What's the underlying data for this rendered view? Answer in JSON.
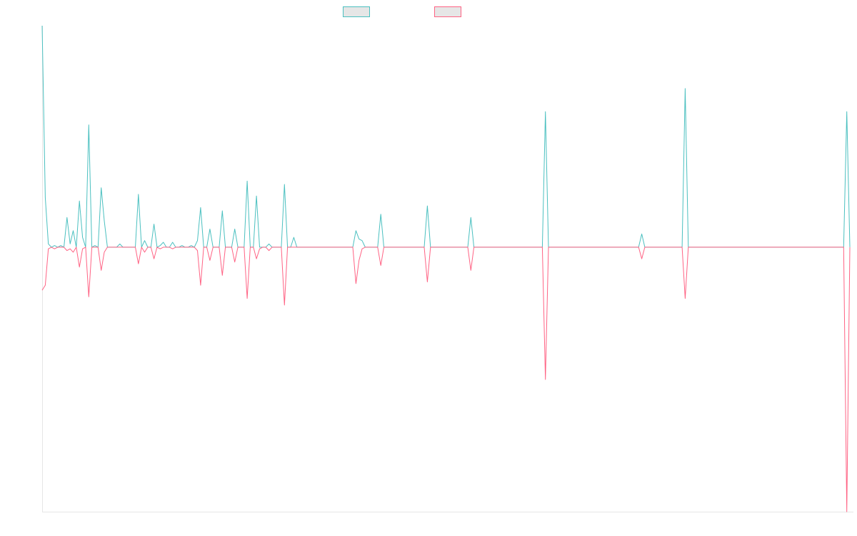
{
  "chart_data": {
    "type": "line",
    "title": "",
    "xlabel": "",
    "ylabel": "",
    "x_count": 145,
    "ylim": [
      -80,
      67
    ],
    "grid": false,
    "legend_position": "top",
    "series": [
      {
        "name": "",
        "color": "#4bc0c0",
        "points": [
          [
            0,
            67
          ],
          [
            1,
            15
          ],
          [
            2,
            1
          ],
          [
            3,
            0
          ],
          [
            4,
            0.5
          ],
          [
            5,
            0
          ],
          [
            6,
            0.5
          ],
          [
            7,
            0
          ],
          [
            8,
            9
          ],
          [
            9,
            1
          ],
          [
            10,
            5
          ],
          [
            11,
            0
          ],
          [
            12,
            14
          ],
          [
            13,
            3
          ],
          [
            14,
            0
          ],
          [
            15,
            37
          ],
          [
            16,
            0
          ],
          [
            17,
            0.5
          ],
          [
            18,
            0
          ],
          [
            19,
            18
          ],
          [
            20,
            8
          ],
          [
            21,
            0
          ],
          [
            22,
            0
          ],
          [
            23,
            0
          ],
          [
            24,
            0
          ],
          [
            25,
            1
          ],
          [
            26,
            0
          ],
          [
            27,
            0
          ],
          [
            28,
            0
          ],
          [
            29,
            0
          ],
          [
            30,
            0
          ],
          [
            31,
            16
          ],
          [
            32,
            0
          ],
          [
            33,
            2
          ],
          [
            34,
            0
          ],
          [
            35,
            0
          ],
          [
            36,
            7
          ],
          [
            37,
            0
          ],
          [
            38,
            0.5
          ],
          [
            39,
            1.5
          ],
          [
            40,
            0
          ],
          [
            41,
            0
          ],
          [
            42,
            1.5
          ],
          [
            43,
            0
          ],
          [
            44,
            0
          ],
          [
            45,
            0.5
          ],
          [
            46,
            0
          ],
          [
            47,
            0
          ],
          [
            48,
            0.5
          ],
          [
            49,
            0
          ],
          [
            50,
            2
          ],
          [
            51,
            12
          ],
          [
            52,
            0
          ],
          [
            53,
            0
          ],
          [
            54,
            5.5
          ],
          [
            55,
            0
          ],
          [
            56,
            0
          ],
          [
            57,
            0
          ],
          [
            58,
            11
          ],
          [
            59,
            0
          ],
          [
            60,
            0
          ],
          [
            61,
            0
          ],
          [
            62,
            5.5
          ],
          [
            63,
            0
          ],
          [
            64,
            0
          ],
          [
            65,
            0
          ],
          [
            66,
            20
          ],
          [
            67,
            0
          ],
          [
            68,
            0
          ],
          [
            69,
            15.5
          ],
          [
            70,
            0
          ],
          [
            71,
            0
          ],
          [
            72,
            0
          ],
          [
            73,
            1
          ],
          [
            74,
            0
          ],
          [
            75,
            0
          ],
          [
            76,
            0
          ],
          [
            77,
            0
          ],
          [
            78,
            19
          ],
          [
            79,
            0
          ],
          [
            80,
            0
          ],
          [
            81,
            3
          ],
          [
            82,
            0
          ],
          [
            92,
            0
          ],
          [
            96,
            0
          ],
          [
            100,
            0
          ],
          [
            101,
            5
          ],
          [
            102,
            2.5
          ],
          [
            103,
            2
          ],
          [
            104,
            0
          ],
          [
            105,
            0
          ],
          [
            106,
            0
          ],
          [
            107,
            0
          ],
          [
            108,
            0
          ],
          [
            109,
            10
          ],
          [
            110,
            0
          ],
          [
            115,
            0
          ],
          [
            120,
            0
          ],
          [
            123,
            0
          ],
          [
            124,
            12.5
          ],
          [
            125,
            0
          ],
          [
            126,
            0
          ],
          [
            127,
            0
          ],
          [
            130,
            0
          ],
          [
            133,
            0
          ],
          [
            136,
            0
          ],
          [
            137,
            0
          ],
          [
            138,
            9
          ],
          [
            139,
            0
          ],
          [
            150,
            0
          ],
          [
            160,
            0
          ],
          [
            161,
            0
          ],
          [
            162,
            41
          ],
          [
            163,
            0
          ],
          [
            180,
            0
          ],
          [
            190,
            0
          ],
          [
            192,
            0
          ],
          [
            193,
            4
          ],
          [
            194,
            0
          ],
          [
            200,
            0
          ],
          [
            206,
            0
          ],
          [
            207,
            48
          ],
          [
            208,
            0
          ],
          [
            250,
            0
          ],
          [
            258,
            0
          ],
          [
            259,
            41
          ],
          [
            260,
            0
          ]
        ]
      },
      {
        "name": "",
        "color": "#ff6384",
        "points": [
          [
            0,
            -13
          ],
          [
            1,
            -11.5
          ],
          [
            2,
            -0.5
          ],
          [
            3,
            0
          ],
          [
            4,
            -0.5
          ],
          [
            5,
            0
          ],
          [
            6,
            0
          ],
          [
            7,
            0
          ],
          [
            8,
            -1
          ],
          [
            9,
            -0.5
          ],
          [
            10,
            -1.5
          ],
          [
            11,
            0
          ],
          [
            12,
            -6
          ],
          [
            13,
            -0.5
          ],
          [
            14,
            0
          ],
          [
            15,
            -15
          ],
          [
            16,
            0
          ],
          [
            17,
            0
          ],
          [
            18,
            0
          ],
          [
            19,
            -7
          ],
          [
            20,
            -1.5
          ],
          [
            21,
            0
          ],
          [
            22,
            0
          ],
          [
            23,
            0
          ],
          [
            24,
            0
          ],
          [
            25,
            0
          ],
          [
            26,
            0
          ],
          [
            27,
            0
          ],
          [
            28,
            0
          ],
          [
            29,
            0
          ],
          [
            30,
            0
          ],
          [
            31,
            -5
          ],
          [
            32,
            0
          ],
          [
            33,
            -1.5
          ],
          [
            34,
            0
          ],
          [
            35,
            0
          ],
          [
            36,
            -3.5
          ],
          [
            37,
            0
          ],
          [
            38,
            -0.5
          ],
          [
            39,
            0
          ],
          [
            40,
            0
          ],
          [
            41,
            0
          ],
          [
            42,
            -0.5
          ],
          [
            43,
            0
          ],
          [
            44,
            0
          ],
          [
            45,
            0
          ],
          [
            46,
            0
          ],
          [
            47,
            0
          ],
          [
            48,
            0
          ],
          [
            49,
            0
          ],
          [
            50,
            -1
          ],
          [
            51,
            -11.5
          ],
          [
            52,
            0
          ],
          [
            53,
            0
          ],
          [
            54,
            -4
          ],
          [
            55,
            0
          ],
          [
            56,
            0
          ],
          [
            57,
            0
          ],
          [
            58,
            -8.5
          ],
          [
            59,
            0
          ],
          [
            60,
            0
          ],
          [
            61,
            0
          ],
          [
            62,
            -4.5
          ],
          [
            63,
            0
          ],
          [
            64,
            0
          ],
          [
            65,
            0
          ],
          [
            66,
            -15.5
          ],
          [
            67,
            0
          ],
          [
            68,
            0
          ],
          [
            69,
            -3.5
          ],
          [
            70,
            -0.5
          ],
          [
            71,
            0
          ],
          [
            72,
            0
          ],
          [
            73,
            -1
          ],
          [
            74,
            0
          ],
          [
            75,
            0
          ],
          [
            76,
            0
          ],
          [
            77,
            0
          ],
          [
            78,
            -17.5
          ],
          [
            79,
            0
          ],
          [
            80,
            0
          ],
          [
            81,
            0
          ],
          [
            82,
            0
          ],
          [
            92,
            0
          ],
          [
            96,
            0
          ],
          [
            100,
            0
          ],
          [
            101,
            -11
          ],
          [
            102,
            -4
          ],
          [
            103,
            -0.5
          ],
          [
            104,
            0
          ],
          [
            105,
            0
          ],
          [
            106,
            0
          ],
          [
            107,
            0
          ],
          [
            108,
            0
          ],
          [
            109,
            -5.5
          ],
          [
            110,
            0
          ],
          [
            115,
            0
          ],
          [
            120,
            0
          ],
          [
            123,
            0
          ],
          [
            124,
            -10.5
          ],
          [
            125,
            0
          ],
          [
            126,
            0
          ],
          [
            127,
            0
          ],
          [
            130,
            0
          ],
          [
            133,
            0
          ],
          [
            136,
            0
          ],
          [
            137,
            0
          ],
          [
            138,
            -7
          ],
          [
            139,
            0
          ],
          [
            150,
            0
          ],
          [
            160,
            0
          ],
          [
            161,
            0
          ],
          [
            162,
            -40
          ],
          [
            163,
            0
          ],
          [
            180,
            0
          ],
          [
            190,
            0
          ],
          [
            192,
            0
          ],
          [
            193,
            -3.5
          ],
          [
            194,
            0
          ],
          [
            200,
            0
          ],
          [
            206,
            0
          ],
          [
            207,
            -15.5
          ],
          [
            208,
            0
          ],
          [
            250,
            0
          ],
          [
            258,
            0
          ],
          [
            259,
            -80
          ],
          [
            260,
            0
          ]
        ]
      }
    ]
  }
}
